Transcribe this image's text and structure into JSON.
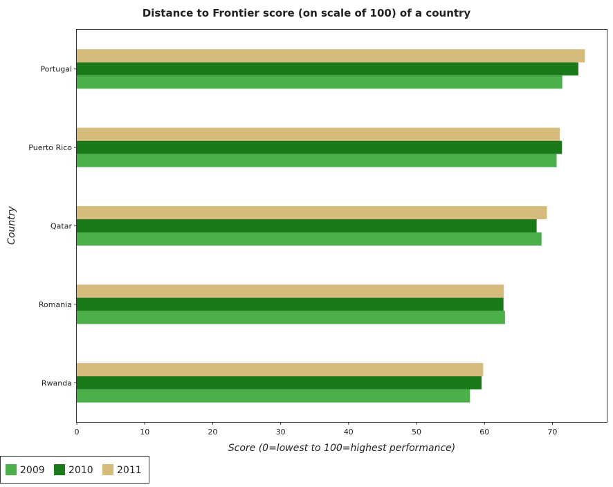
{
  "chart_data": {
    "type": "bar",
    "orientation": "horizontal",
    "title": "Distance to Frontier score (on scale of 100) of a country",
    "xlabel": "Score (0=lowest to 100=highest performance)",
    "ylabel": "Country",
    "categories": [
      "Portugal",
      "Puerto Rico",
      "Qatar",
      "Romania",
      "Rwanda"
    ],
    "series": [
      {
        "name": "2009",
        "color": "#4daf4a",
        "values": [
          71.45,
          70.62,
          68.4,
          63.02,
          57.87
        ]
      },
      {
        "name": "2010",
        "color": "#1a7a1a",
        "values": [
          73.82,
          71.41,
          67.68,
          62.8,
          59.58
        ]
      },
      {
        "name": "2011",
        "color": "#d6bc7c",
        "values": [
          74.77,
          71.09,
          69.19,
          62.84,
          59.81
        ]
      }
    ],
    "xlim": [
      0,
      78
    ],
    "xticks": [
      0,
      10,
      20,
      30,
      40,
      50,
      60,
      70
    ],
    "grid": false,
    "legend_position": "bottom-left"
  }
}
